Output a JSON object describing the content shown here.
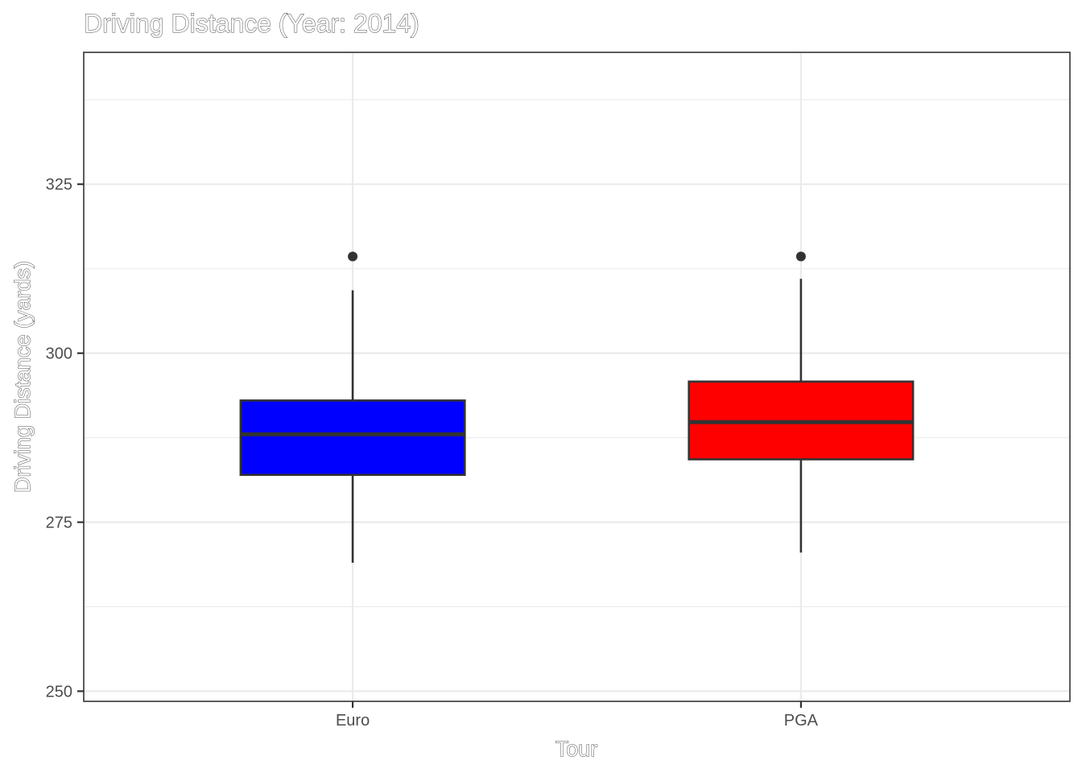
{
  "chart_data": {
    "type": "box",
    "title": "Driving Distance (Year: 2014)",
    "xlabel": "Tour",
    "ylabel": "Driving Distance (yards)",
    "ylim": [
      248.5,
      344.5
    ],
    "yticks": [
      250,
      275,
      300,
      325
    ],
    "ytick_labels": [
      "250",
      "275",
      "300",
      "325"
    ],
    "grid": true,
    "categories": [
      "Euro",
      "PGA"
    ],
    "boxes": [
      {
        "category": "Euro",
        "whisker_low": 269,
        "q1": 282,
        "median": 288,
        "q3": 293,
        "whisker_high": 309.3,
        "outliers": [
          314.3
        ],
        "fill": "#0000ff"
      },
      {
        "category": "PGA",
        "whisker_low": 270.5,
        "q1": 284.3,
        "median": 289.8,
        "q3": 295.8,
        "whisker_high": 311,
        "outliers": [
          314.3
        ],
        "fill": "#ff0000"
      }
    ]
  }
}
